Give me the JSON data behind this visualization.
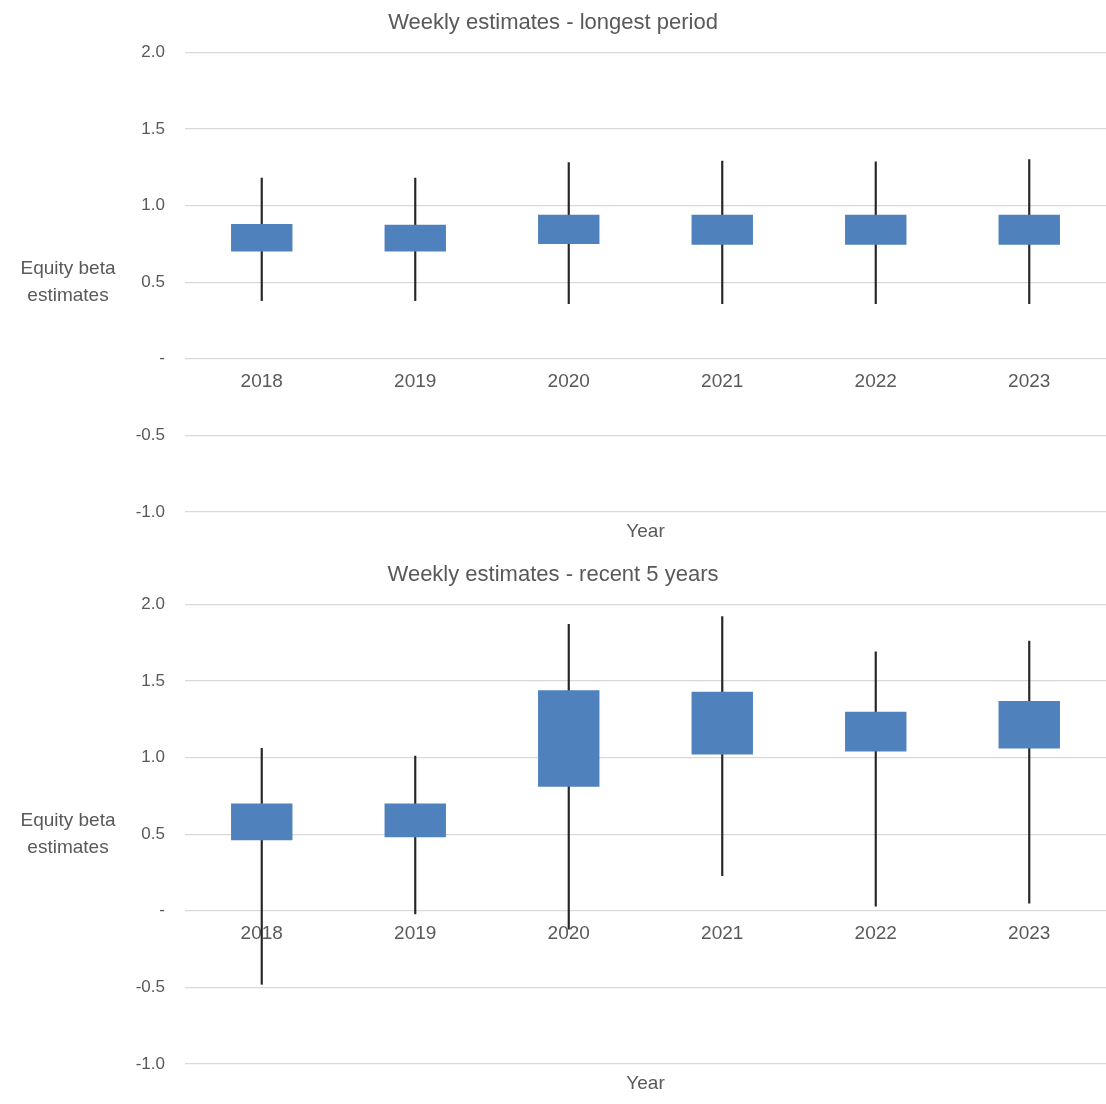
{
  "chart_data": [
    {
      "type": "candlestick",
      "title": "Weekly estimates - longest period",
      "xlabel": "Year",
      "ylabel": "Equity beta estimates",
      "categories": [
        "2018",
        "2019",
        "2020",
        "2021",
        "2022",
        "2023"
      ],
      "ohlc": [
        [
          0.7,
          1.18,
          0.38,
          0.88
        ],
        [
          0.7,
          1.18,
          0.38,
          0.875
        ],
        [
          0.75,
          1.28,
          0.36,
          0.94
        ],
        [
          0.745,
          1.29,
          0.36,
          0.94
        ],
        [
          0.745,
          1.285,
          0.36,
          0.94
        ],
        [
          0.745,
          1.3,
          0.36,
          0.94
        ]
      ],
      "color": "#4f81bd",
      "ylim": [
        -1,
        2
      ],
      "yticks": [
        {
          "value": -1,
          "label": "-1.0"
        },
        {
          "value": -0.5,
          "label": "-0.5"
        },
        {
          "value": 0,
          "label": "-"
        },
        {
          "value": 0.5,
          "label": "0.5"
        },
        {
          "value": 1,
          "label": "1.0"
        },
        {
          "value": 1.5,
          "label": "1.5"
        },
        {
          "value": 2,
          "label": "2.0"
        }
      ],
      "grid": "y",
      "legend": false
    },
    {
      "type": "candlestick",
      "title": "Weekly estimates - recent 5 years",
      "xlabel": "Year",
      "ylabel": "Equity beta estimates",
      "categories": [
        "2018",
        "2019",
        "2020",
        "2021",
        "2022",
        "2023"
      ],
      "ohlc": [
        [
          0.46,
          1.06,
          -0.48,
          0.7
        ],
        [
          0.48,
          1.01,
          -0.02,
          0.7
        ],
        [
          0.81,
          1.87,
          -0.12,
          1.44
        ],
        [
          1.02,
          1.92,
          0.23,
          1.43
        ],
        [
          1.04,
          1.69,
          0.03,
          1.3
        ],
        [
          1.06,
          1.76,
          0.05,
          1.37
        ]
      ],
      "color": "#4f81bd",
      "ylim": [
        -1,
        2
      ],
      "yticks": [
        {
          "value": -1,
          "label": "-1.0"
        },
        {
          "value": -0.5,
          "label": "-0.5"
        },
        {
          "value": 0,
          "label": "-"
        },
        {
          "value": 0.5,
          "label": "0.5"
        },
        {
          "value": 1,
          "label": "1.0"
        },
        {
          "value": 1.5,
          "label": "1.5"
        },
        {
          "value": 2,
          "label": "2.0"
        }
      ],
      "grid": "y",
      "legend": false
    }
  ]
}
